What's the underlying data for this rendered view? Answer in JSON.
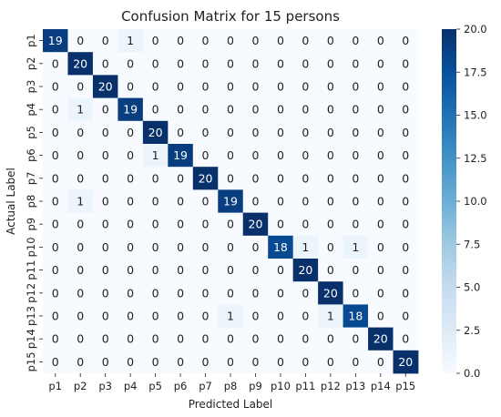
{
  "chart_data": {
    "type": "heatmap",
    "title": "Confusion Matrix for 15 persons",
    "xlabel": "Predicted Label",
    "ylabel": "Actual Label",
    "x_categories": [
      "p1",
      "p2",
      "p3",
      "p4",
      "p5",
      "p6",
      "p7",
      "p8",
      "p9",
      "p10",
      "p11",
      "p12",
      "p13",
      "p14",
      "p15"
    ],
    "y_categories": [
      "p1",
      "p2",
      "p3",
      "p4",
      "p5",
      "p6",
      "p7",
      "p8",
      "p9",
      "p10",
      "p11",
      "p12",
      "p13",
      "p14",
      "p15"
    ],
    "values": [
      [
        19,
        0,
        0,
        1,
        0,
        0,
        0,
        0,
        0,
        0,
        0,
        0,
        0,
        0,
        0
      ],
      [
        0,
        20,
        0,
        0,
        0,
        0,
        0,
        0,
        0,
        0,
        0,
        0,
        0,
        0,
        0
      ],
      [
        0,
        0,
        20,
        0,
        0,
        0,
        0,
        0,
        0,
        0,
        0,
        0,
        0,
        0,
        0
      ],
      [
        0,
        1,
        0,
        19,
        0,
        0,
        0,
        0,
        0,
        0,
        0,
        0,
        0,
        0,
        0
      ],
      [
        0,
        0,
        0,
        0,
        20,
        0,
        0,
        0,
        0,
        0,
        0,
        0,
        0,
        0,
        0
      ],
      [
        0,
        0,
        0,
        0,
        1,
        19,
        0,
        0,
        0,
        0,
        0,
        0,
        0,
        0,
        0
      ],
      [
        0,
        0,
        0,
        0,
        0,
        0,
        20,
        0,
        0,
        0,
        0,
        0,
        0,
        0,
        0
      ],
      [
        0,
        1,
        0,
        0,
        0,
        0,
        0,
        19,
        0,
        0,
        0,
        0,
        0,
        0,
        0
      ],
      [
        0,
        0,
        0,
        0,
        0,
        0,
        0,
        0,
        20,
        0,
        0,
        0,
        0,
        0,
        0
      ],
      [
        0,
        0,
        0,
        0,
        0,
        0,
        0,
        0,
        0,
        18,
        1,
        0,
        1,
        0,
        0
      ],
      [
        0,
        0,
        0,
        0,
        0,
        0,
        0,
        0,
        0,
        0,
        20,
        0,
        0,
        0,
        0
      ],
      [
        0,
        0,
        0,
        0,
        0,
        0,
        0,
        0,
        0,
        0,
        0,
        20,
        0,
        0,
        0
      ],
      [
        0,
        0,
        0,
        0,
        0,
        0,
        0,
        1,
        0,
        0,
        0,
        1,
        18,
        0,
        0
      ],
      [
        0,
        0,
        0,
        0,
        0,
        0,
        0,
        0,
        0,
        0,
        0,
        0,
        0,
        20,
        0
      ],
      [
        0,
        0,
        0,
        0,
        0,
        0,
        0,
        0,
        0,
        0,
        0,
        0,
        0,
        0,
        20
      ]
    ],
    "colorbar": {
      "range": [
        0,
        20
      ],
      "ticks": [
        "0.0",
        "2.5",
        "5.0",
        "7.5",
        "10.0",
        "12.5",
        "15.0",
        "17.5",
        "20.0"
      ],
      "colormap": "Blues",
      "color_low": "#f7fbff",
      "color_high": "#08306b"
    }
  }
}
